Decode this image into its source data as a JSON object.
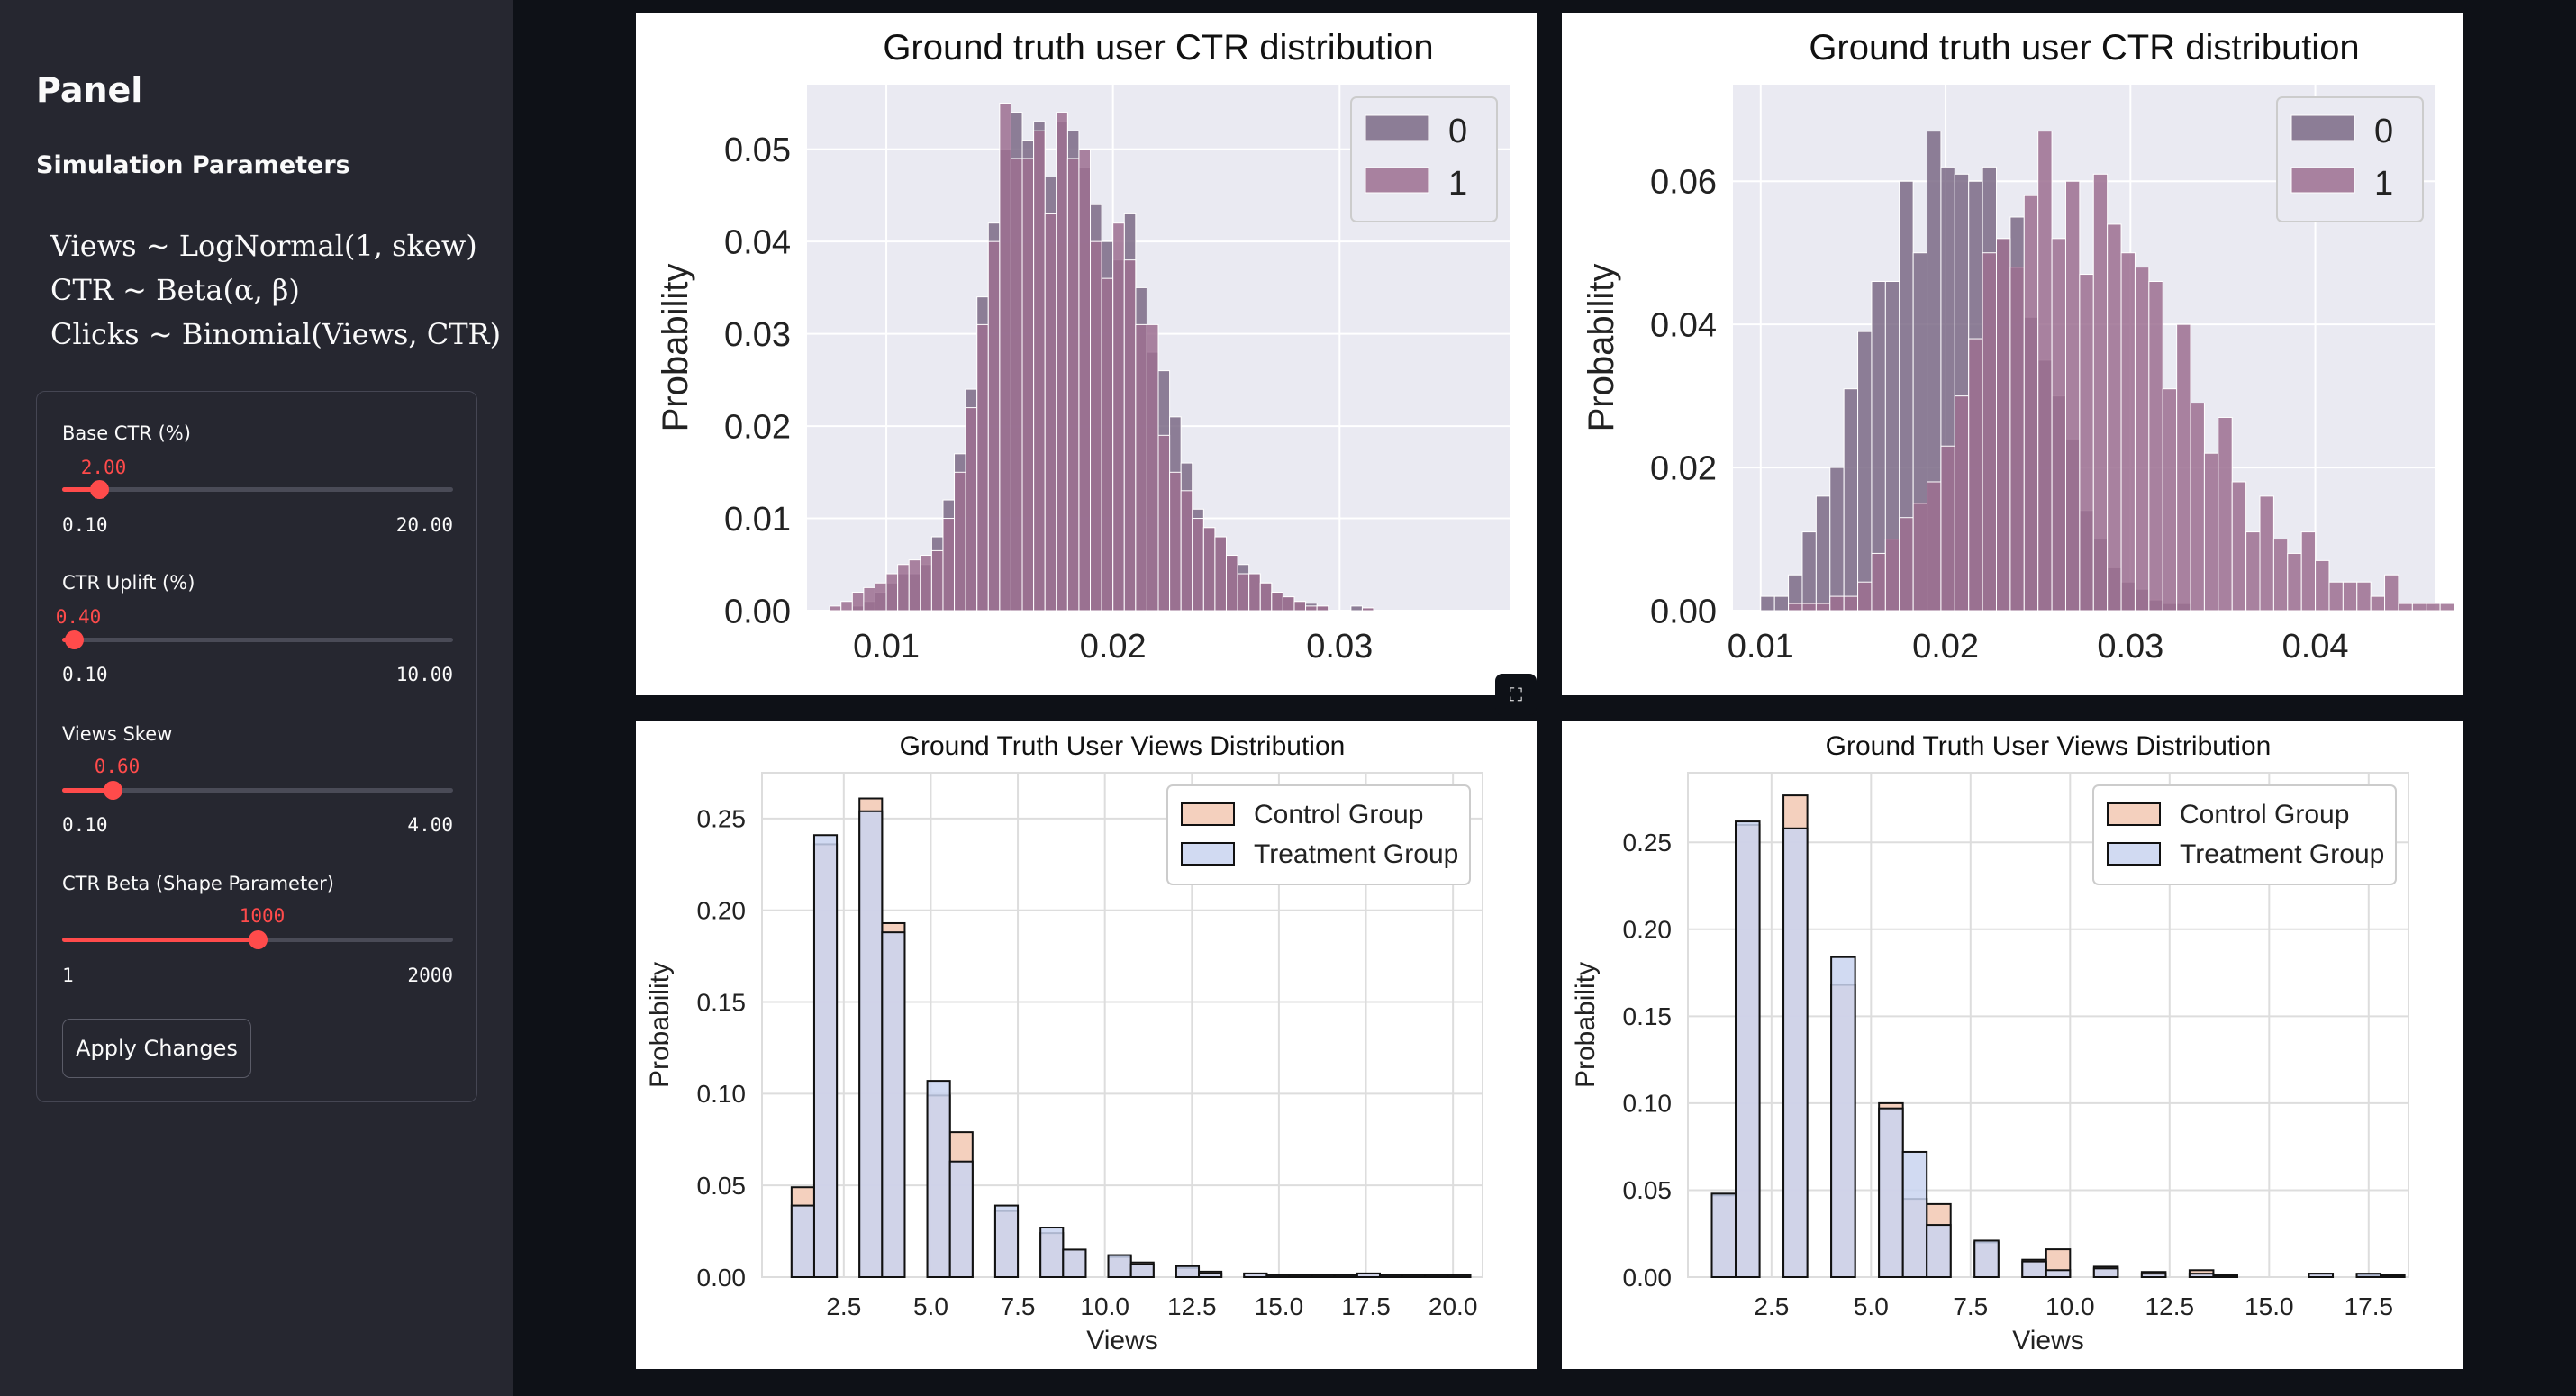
{
  "sidebar": {
    "title": "Panel",
    "subtitle": "Simulation Parameters",
    "formulas": [
      "Views ~ LogNormal(1, skew)",
      "CTR ~ Beta(α, β)",
      "Clicks ~ Binomial(Views, CTR)"
    ],
    "sliders": [
      {
        "label": "Base CTR (%)",
        "value": "2.00",
        "min": "0.10",
        "max": "20.00",
        "level": 0.095
      },
      {
        "label": "CTR Uplift (%)",
        "value": "0.40",
        "min": "0.10",
        "max": "10.00",
        "level": 0.03
      },
      {
        "label": "Views Skew",
        "value": "0.60",
        "min": "0.10",
        "max": "4.00",
        "level": 0.13
      },
      {
        "label": "CTR Beta (Shape Parameter)",
        "value": "1000",
        "min": "1",
        "max": "2000",
        "level": 0.5
      }
    ],
    "apply_label": "Apply Changes"
  },
  "icons": {
    "expand": "fullscreen-icon"
  },
  "colors": {
    "accent": "#ff4b4b",
    "background": "#0e1117",
    "sidebar": "#262730"
  },
  "chart_data": [
    {
      "type": "bar",
      "title": "Ground truth user CTR distribution",
      "xlabel": "",
      "ylabel": "Probability",
      "xlim": [
        0.0065,
        0.0375
      ],
      "ylim": [
        0,
        0.057
      ],
      "xticks": [
        0.01,
        0.02,
        0.03
      ],
      "xtick_labels": [
        "0.01",
        "0.02",
        "0.03"
      ],
      "yticks": [
        0,
        0.01,
        0.02,
        0.03,
        0.04,
        0.05
      ],
      "ytick_labels": [
        "0.00",
        "0.01",
        "0.02",
        "0.03",
        "0.04",
        "0.05"
      ],
      "grid": true,
      "legend": "top-right",
      "bin_start": 0.0075,
      "bin_width": 0.0005,
      "series": [
        {
          "name": "0",
          "color": "#7b6a86",
          "values": [
            0,
            0,
            0.0005,
            0.001,
            0.002,
            0.003,
            0.004,
            0.004,
            0.005,
            0.008,
            0.012,
            0.017,
            0.024,
            0.034,
            0.042,
            0.05,
            0.054,
            0.051,
            0.053,
            0.047,
            0.053,
            0.052,
            0.048,
            0.044,
            0.04,
            0.038,
            0.043,
            0.035,
            0.028,
            0.026,
            0.021,
            0.016,
            0.011,
            0.009,
            0.008,
            0.006,
            0.005,
            0.004,
            0.003,
            0.002,
            0.0015,
            0.001,
            0.0008,
            0.0005,
            0,
            0,
            0.0005,
            0.0003
          ]
        },
        {
          "name": "1",
          "color": "#9c6f91",
          "values": [
            0.0005,
            0.001,
            0.002,
            0.0025,
            0.003,
            0.004,
            0.005,
            0.0055,
            0.006,
            0.0065,
            0.01,
            0.015,
            0.022,
            0.031,
            0.04,
            0.055,
            0.049,
            0.049,
            0.052,
            0.043,
            0.054,
            0.049,
            0.05,
            0.04,
            0.036,
            0.042,
            0.038,
            0.031,
            0.031,
            0.019,
            0.015,
            0.013,
            0.01,
            0.009,
            0.008,
            0.006,
            0.004,
            0.004,
            0.003,
            0.002,
            0.0015,
            0.001,
            0.0005,
            0.0005,
            0,
            0,
            0,
            0.0003
          ]
        }
      ]
    },
    {
      "type": "bar",
      "title": "Ground truth user CTR distribution",
      "xlabel": "",
      "ylabel": "Probability",
      "xlim": [
        0.0085,
        0.0465
      ],
      "ylim": [
        0,
        0.0735
      ],
      "xticks": [
        0.01,
        0.02,
        0.03,
        0.04
      ],
      "xtick_labels": [
        "0.01",
        "0.02",
        "0.03",
        "0.04"
      ],
      "yticks": [
        0,
        0.02,
        0.04,
        0.06
      ],
      "ytick_labels": [
        "0.00",
        "0.02",
        "0.04",
        "0.06"
      ],
      "grid": true,
      "legend": "top-right",
      "bin_start": 0.01,
      "bin_width": 0.00075,
      "series": [
        {
          "name": "0",
          "color": "#7b6a86",
          "values": [
            0.002,
            0.002,
            0.005,
            0.011,
            0.016,
            0.02,
            0.031,
            0.039,
            0.046,
            0.046,
            0.06,
            0.05,
            0.067,
            0.062,
            0.061,
            0.06,
            0.062,
            0.052,
            0.055,
            0.041,
            0.035,
            0.03,
            0.024,
            0.014,
            0.01,
            0.006,
            0.004,
            0.003,
            0.0015,
            0.001,
            0.001,
            0,
            0,
            0,
            0,
            0,
            0,
            0,
            0,
            0,
            0,
            0,
            0,
            0,
            0,
            0,
            0,
            0,
            0,
            0
          ]
        },
        {
          "name": "1",
          "color": "#9c6f91",
          "values": [
            0,
            0,
            0.001,
            0.001,
            0.001,
            0.002,
            0.002,
            0.004,
            0.008,
            0.01,
            0.013,
            0.015,
            0.018,
            0.023,
            0.03,
            0.038,
            0.05,
            0.052,
            0.048,
            0.058,
            0.067,
            0.052,
            0.06,
            0.047,
            0.061,
            0.054,
            0.05,
            0.048,
            0.046,
            0.031,
            0.04,
            0.029,
            0.022,
            0.027,
            0.018,
            0.011,
            0.016,
            0.01,
            0.008,
            0.011,
            0.007,
            0.004,
            0.004,
            0.004,
            0.002,
            0.005,
            0.001,
            0.001,
            0.001,
            0.001
          ]
        }
      ]
    },
    {
      "type": "bar",
      "title": "Ground Truth User Views Distribution",
      "xlabel": "Views",
      "ylabel": "Probability",
      "xlim": [
        0.15,
        20.85
      ],
      "ylim": [
        0,
        0.275
      ],
      "xticks": [
        2.5,
        5.0,
        7.5,
        10.0,
        12.5,
        15.0,
        17.5,
        20.0
      ],
      "xtick_labels": [
        "2.5",
        "5.0",
        "7.5",
        "10.0",
        "12.5",
        "15.0",
        "17.5",
        "20.0"
      ],
      "yticks": [
        0,
        0.05,
        0.1,
        0.15,
        0.2,
        0.25
      ],
      "ytick_labels": [
        "0.00",
        "0.05",
        "0.10",
        "0.15",
        "0.20",
        "0.25"
      ],
      "grid": true,
      "legend": "top-right",
      "x": [
        1.0,
        1.65,
        2.3,
        2.95,
        3.6,
        4.25,
        4.9,
        5.55,
        6.2,
        6.85,
        7.5,
        8.15,
        8.8,
        9.45,
        10.1,
        10.75,
        11.4,
        12.05,
        12.7,
        13.35,
        14.0,
        14.65,
        15.3,
        15.95,
        16.6,
        17.25,
        17.9,
        18.55,
        19.2,
        19.85
      ],
      "bar_width": 0.65,
      "series": [
        {
          "name": "Control Group",
          "color": "#f2c8b3",
          "values": [
            0.049,
            0.236,
            0,
            0.261,
            0.193,
            0,
            0.099,
            0.079,
            0,
            0.036,
            0,
            0.024,
            0.015,
            0,
            0.011,
            0.008,
            0,
            0.005,
            0.003,
            0,
            0.002,
            0.001,
            0.001,
            0.001,
            0.001,
            0.002,
            0.001,
            0.001,
            0.001,
            0.001
          ]
        },
        {
          "name": "Treatment Group",
          "color": "#c9d3f0",
          "values": [
            0.039,
            0.241,
            0,
            0.254,
            0.188,
            0,
            0.107,
            0.063,
            0,
            0.039,
            0,
            0.027,
            0.015,
            0,
            0.012,
            0.007,
            0,
            0.006,
            0.002,
            0,
            0.002,
            0.001,
            0.001,
            0.001,
            0.001,
            0.002,
            0.001,
            0.001,
            0.001,
            0.001
          ]
        }
      ]
    },
    {
      "type": "bar",
      "title": "Ground Truth User Views Distribution",
      "xlabel": "Views",
      "ylabel": "Probability",
      "xlim": [
        0.4,
        18.5
      ],
      "ylim": [
        0,
        0.29
      ],
      "xticks": [
        2.5,
        5.0,
        7.5,
        10.0,
        12.5,
        15.0,
        17.5
      ],
      "xtick_labels": [
        "2.5",
        "5.0",
        "7.5",
        "10.0",
        "12.5",
        "15.0",
        "17.5"
      ],
      "yticks": [
        0,
        0.05,
        0.1,
        0.15,
        0.2,
        0.25
      ],
      "ytick_labels": [
        "0.00",
        "0.05",
        "0.10",
        "0.15",
        "0.20",
        "0.25"
      ],
      "grid": true,
      "legend": "top-right",
      "x": [
        1.0,
        1.6,
        2.2,
        2.8,
        3.4,
        4.0,
        4.6,
        5.2,
        5.8,
        6.4,
        7.0,
        7.6,
        8.2,
        8.8,
        9.4,
        10.0,
        10.6,
        11.2,
        11.8,
        12.4,
        13.0,
        13.6,
        14.2,
        14.8,
        15.4,
        16.0,
        16.6,
        17.2,
        17.8
      ],
      "bar_width": 0.6,
      "series": [
        {
          "name": "Control Group",
          "color": "#f2c8b3",
          "values": [
            0.047,
            0.26,
            0,
            0.277,
            0,
            0.168,
            0,
            0.1,
            0.045,
            0.042,
            0,
            0.02,
            0,
            0.01,
            0.016,
            0,
            0.006,
            0,
            0.003,
            0,
            0.004,
            0.001,
            0,
            0,
            0,
            0.002,
            0,
            0.001,
            0.001
          ]
        },
        {
          "name": "Treatment Group",
          "color": "#c9d3f0",
          "values": [
            0.048,
            0.262,
            0,
            0.258,
            0,
            0.184,
            0,
            0.097,
            0.072,
            0.03,
            0,
            0.021,
            0,
            0.009,
            0.004,
            0,
            0.005,
            0,
            0.002,
            0,
            0.002,
            0.001,
            0,
            0,
            0,
            0.002,
            0,
            0.002,
            0.001
          ]
        }
      ]
    }
  ]
}
